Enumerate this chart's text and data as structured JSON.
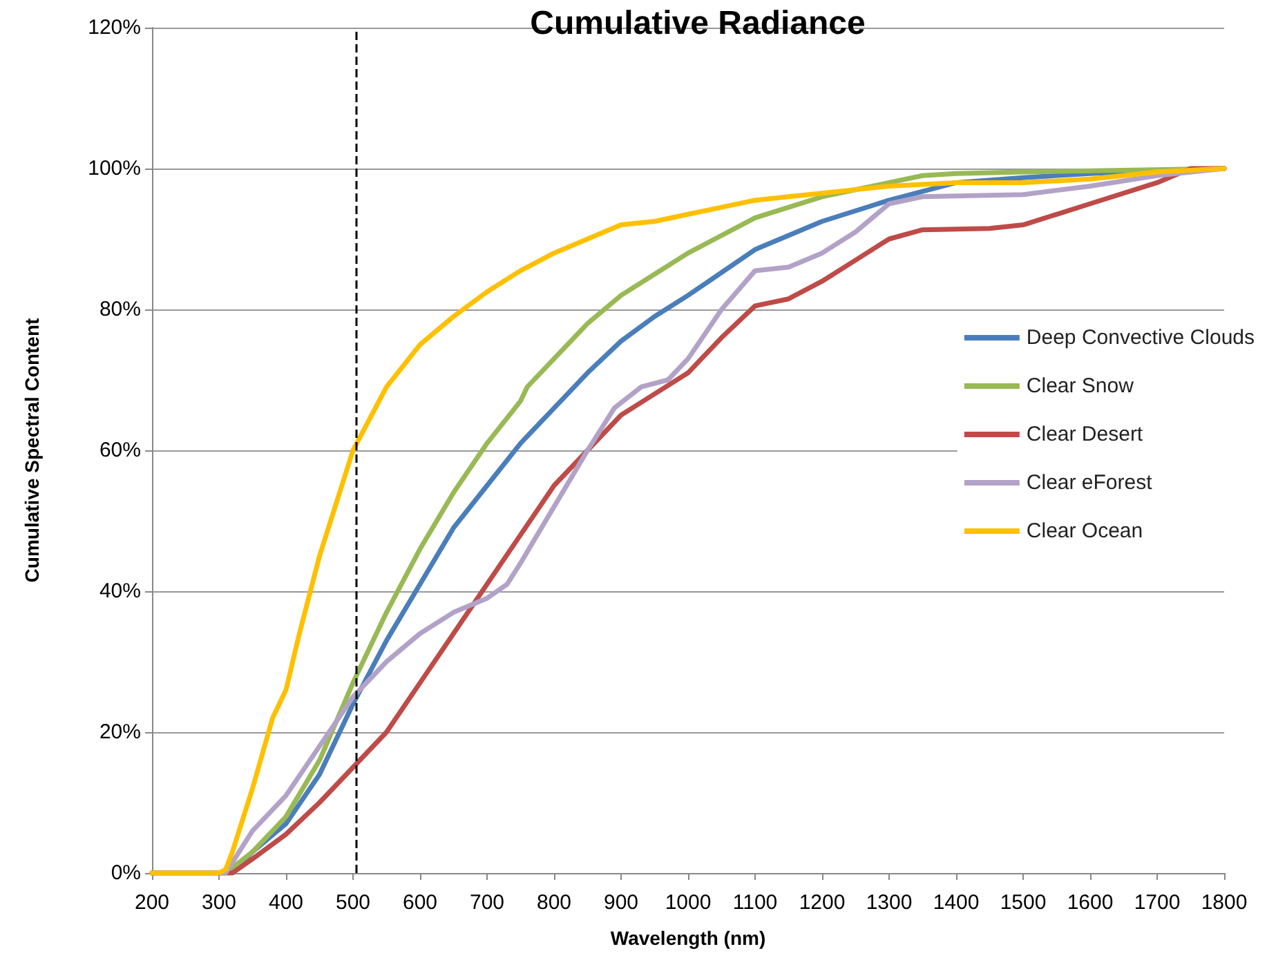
{
  "chart_data": {
    "type": "line",
    "title": "Cumulative Radiance",
    "xlabel": "Wavelength (nm)",
    "ylabel": "Cumulative Spectral Content",
    "xlim": [
      200,
      1800
    ],
    "xticks": [
      200,
      300,
      400,
      500,
      600,
      700,
      800,
      900,
      1000,
      1100,
      1200,
      1300,
      1400,
      1500,
      1600,
      1700,
      1800
    ],
    "ylim": [
      0,
      120
    ],
    "yticks": [
      {
        "value": 0,
        "label": "0%"
      },
      {
        "value": 20,
        "label": "20%"
      },
      {
        "value": 40,
        "label": "40%"
      },
      {
        "value": 60,
        "label": "60%"
      },
      {
        "value": 80,
        "label": "80%"
      },
      {
        "value": 100,
        "label": "100%"
      },
      {
        "value": 120,
        "label": "120%"
      }
    ],
    "grid": "y",
    "legend": "right",
    "marker": "none",
    "line_style": "solid",
    "ref_lines": [
      {
        "axis": "x",
        "value": 505,
        "label": null,
        "color": "#000000",
        "line_style": "dashed"
      }
    ],
    "series": [
      {
        "name": "Deep Convective Clouds",
        "color": "#4a7ebb",
        "x": [
          200,
          320,
          350,
          400,
          450,
          500,
          550,
          600,
          650,
          700,
          750,
          800,
          850,
          900,
          950,
          1000,
          1100,
          1200,
          1300,
          1400,
          1500,
          1600,
          1700,
          1800
        ],
        "values": [
          0,
          0,
          3,
          7,
          14,
          24,
          33,
          41,
          49,
          55,
          61,
          66,
          71,
          75.5,
          79,
          82,
          88.5,
          92.5,
          95.5,
          98,
          98.7,
          99.3,
          99.7,
          100
        ]
      },
      {
        "name": "Clear Snow",
        "color": "#98b954",
        "x": [
          200,
          310,
          350,
          400,
          450,
          500,
          550,
          600,
          650,
          700,
          750,
          760,
          800,
          850,
          900,
          950,
          1000,
          1100,
          1200,
          1300,
          1350,
          1400,
          1500,
          1800
        ],
        "values": [
          0,
          0,
          3,
          8,
          16,
          27,
          37,
          46,
          54,
          61,
          67,
          69,
          73,
          78,
          82,
          85,
          88,
          93,
          96,
          98,
          99,
          99.3,
          99.5,
          100
        ]
      },
      {
        "name": "Clear Desert",
        "color": "#be4b48",
        "x": [
          200,
          320,
          350,
          400,
          450,
          500,
          550,
          600,
          650,
          700,
          750,
          800,
          850,
          900,
          950,
          1000,
          1050,
          1100,
          1150,
          1200,
          1250,
          1300,
          1350,
          1450,
          1500,
          1550,
          1600,
          1700,
          1750,
          1800
        ],
        "values": [
          0,
          0,
          2,
          5.5,
          10,
          15,
          20,
          27,
          34,
          41,
          48,
          55,
          60,
          65,
          68,
          71,
          76,
          80.5,
          81.5,
          84,
          87,
          90,
          91.3,
          91.5,
          92,
          93.5,
          95,
          98,
          100,
          100
        ]
      },
      {
        "name": "Clear eForest",
        "color": "#b3a2c7",
        "x": [
          200,
          310,
          350,
          400,
          450,
          500,
          550,
          600,
          650,
          700,
          730,
          750,
          800,
          850,
          890,
          930,
          970,
          1000,
          1050,
          1100,
          1150,
          1200,
          1250,
          1300,
          1350,
          1500,
          1600,
          1700,
          1800
        ],
        "values": [
          0,
          0,
          6,
          11,
          18,
          25,
          30,
          34,
          37,
          39,
          41,
          44,
          52,
          60,
          66,
          69,
          70,
          73,
          80,
          85.5,
          86,
          88,
          91,
          95,
          96,
          96.3,
          97.5,
          99,
          100
        ]
      },
      {
        "name": "Clear Ocean",
        "color": "#ffc000",
        "x": [
          200,
          300,
          310,
          320,
          350,
          380,
          400,
          420,
          450,
          480,
          500,
          550,
          600,
          650,
          700,
          750,
          800,
          850,
          900,
          950,
          1000,
          1050,
          1100,
          1150,
          1200,
          1300,
          1400,
          1500,
          1600,
          1700,
          1800
        ],
        "values": [
          0,
          0,
          0.5,
          3,
          12,
          22,
          26,
          34,
          45,
          54,
          60,
          69,
          75,
          79,
          82.5,
          85.5,
          88,
          90,
          92,
          92.5,
          93.5,
          94.5,
          95.5,
          96,
          96.5,
          97.5,
          98,
          98,
          98.5,
          99.5,
          100
        ]
      }
    ]
  }
}
